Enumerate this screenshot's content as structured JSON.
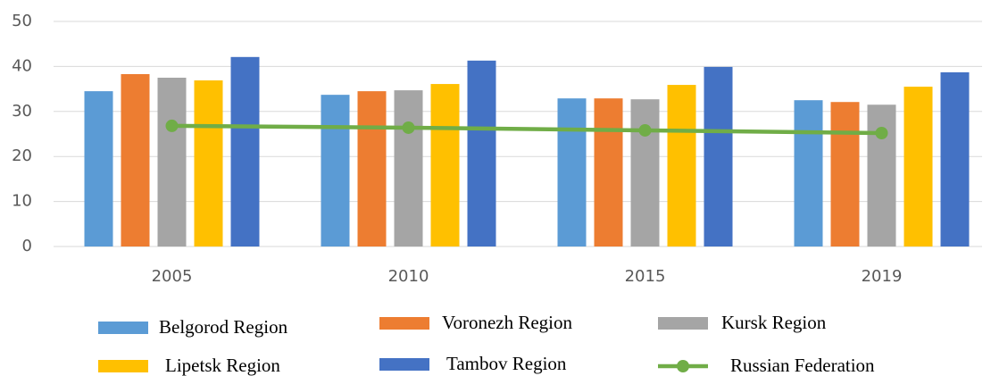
{
  "chart_data": {
    "type": "bar",
    "categories": [
      "2005",
      "2010",
      "2015",
      "2019"
    ],
    "ylim": [
      0,
      50
    ],
    "yticks": [
      0,
      10,
      20,
      30,
      40,
      50
    ],
    "grid": true,
    "series": [
      {
        "name": "Belgorod Region",
        "type": "bar",
        "color": "#5b9bd5",
        "values": [
          34.5,
          33.7,
          32.9,
          32.5
        ]
      },
      {
        "name": "Voronezh Region",
        "type": "bar",
        "color": "#ed7d31",
        "values": [
          38.3,
          34.5,
          32.9,
          32.1
        ]
      },
      {
        "name": "Kursk Region",
        "type": "bar",
        "color": "#a5a5a5",
        "values": [
          37.5,
          34.7,
          32.7,
          31.5
        ]
      },
      {
        "name": "Lipetsk Region",
        "type": "bar",
        "color": "#ffc000",
        "values": [
          36.9,
          36.1,
          35.9,
          35.5
        ]
      },
      {
        "name": "Tambov Region",
        "type": "bar",
        "color": "#4472c4",
        "values": [
          42.1,
          41.3,
          39.9,
          38.7
        ]
      },
      {
        "name": "Russian Federation",
        "type": "line",
        "color": "#70ad47",
        "values": [
          26.8,
          26.4,
          25.8,
          25.2
        ]
      }
    ]
  }
}
